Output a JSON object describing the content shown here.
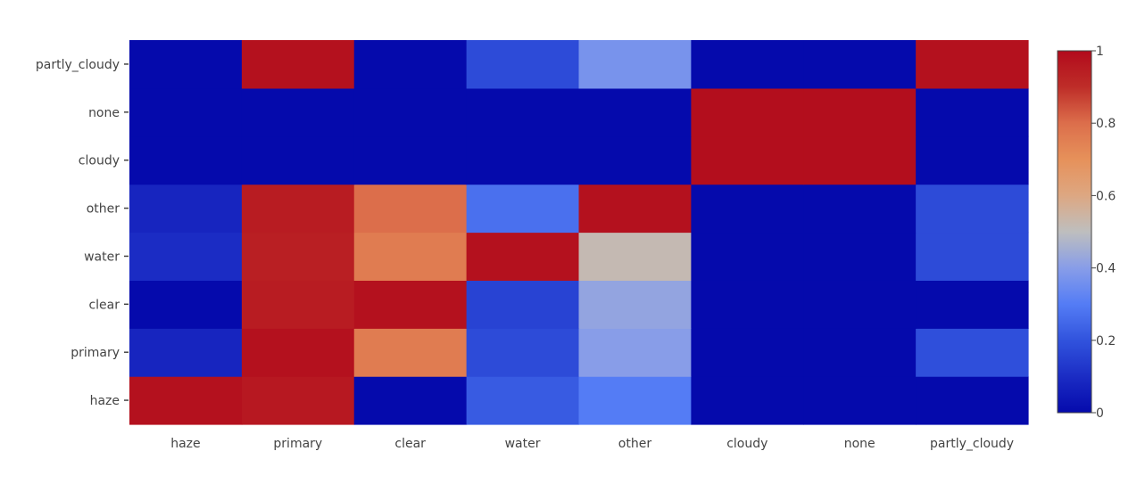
{
  "chart_data": {
    "type": "heatmap",
    "x_categories": [
      "haze",
      "primary",
      "clear",
      "water",
      "other",
      "cloudy",
      "none",
      "partly_cloudy"
    ],
    "y_categories": [
      "haze",
      "primary",
      "clear",
      "water",
      "other",
      "cloudy",
      "none",
      "partly_cloudy"
    ],
    "z": [
      [
        0.98,
        0.96,
        0.0,
        0.22,
        0.3,
        0.0,
        0.0,
        0.0
      ],
      [
        0.08,
        0.98,
        0.76,
        0.18,
        0.4,
        0.0,
        0.0,
        0.19
      ],
      [
        0.0,
        0.95,
        0.98,
        0.16,
        0.42,
        0.0,
        0.0,
        0.0
      ],
      [
        0.1,
        0.94,
        0.76,
        0.98,
        0.52,
        0.0,
        0.0,
        0.18
      ],
      [
        0.08,
        0.95,
        0.8,
        0.27,
        0.98,
        0.0,
        0.0,
        0.18
      ],
      [
        0.0,
        0.0,
        0.0,
        0.0,
        0.0,
        0.99,
        0.99,
        0.0
      ],
      [
        0.0,
        0.0,
        0.0,
        0.0,
        0.0,
        0.99,
        0.99,
        0.0
      ],
      [
        0.0,
        0.98,
        0.0,
        0.18,
        0.37,
        0.0,
        0.0,
        0.98
      ]
    ],
    "zlim": [
      0,
      1
    ],
    "colorscale_name": "coolwarm",
    "colorbar_ticks": [
      {
        "value": 0,
        "label": "0"
      },
      {
        "value": 0.2,
        "label": "0.2"
      },
      {
        "value": 0.4,
        "label": "0.4"
      },
      {
        "value": 0.6,
        "label": "0.6"
      },
      {
        "value": 0.8,
        "label": "0.8"
      },
      {
        "value": 1,
        "label": "1"
      }
    ],
    "title": "",
    "xlabel": "",
    "ylabel": ""
  }
}
